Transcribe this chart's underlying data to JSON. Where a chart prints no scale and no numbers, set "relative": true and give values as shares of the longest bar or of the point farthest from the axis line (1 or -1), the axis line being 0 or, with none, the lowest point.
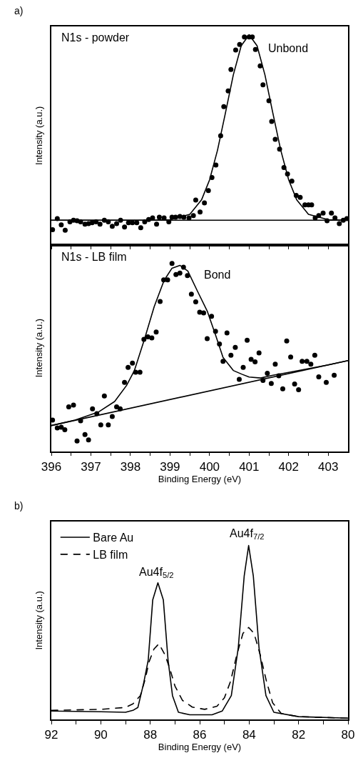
{
  "chart_data": [
    {
      "type": "scatter",
      "title": "a)",
      "ylabel": "Intensity (a.u.)",
      "relative": true,
      "grid": false,
      "tick_labels": false,
      "xlim": [
        396,
        403.5
      ],
      "xticks": [
        396,
        {
          "value": 396.5,
          "label": null
        },
        397,
        {
          "value": 397.5,
          "label": null
        },
        398,
        {
          "value": 398.5,
          "label": null
        },
        399,
        {
          "value": 399.5,
          "label": null
        },
        400,
        {
          "value": 400.5,
          "label": null
        },
        401,
        {
          "value": 401.5,
          "label": null
        },
        402,
        {
          "value": 402.5,
          "label": null
        },
        403
      ],
      "annotations": [
        "N1s - powder",
        "Unbond"
      ],
      "series": [
        {
          "type": "scatter",
          "marker": "circle",
          "color": "#000000",
          "x": [
            396.03,
            396.15,
            396.25,
            396.35,
            396.47,
            396.56,
            396.65,
            396.74,
            396.85,
            396.94,
            397.03,
            397.13,
            397.23,
            397.34,
            397.44,
            397.54,
            397.65,
            397.75,
            397.85,
            397.95,
            398.05,
            398.16,
            398.26,
            398.36,
            398.46,
            398.56,
            398.66,
            398.73,
            398.85,
            398.97,
            399.05,
            399.14,
            399.25,
            399.35,
            399.48,
            399.59,
            399.65,
            399.76,
            399.87,
            399.97,
            400.06,
            400.16,
            400.28,
            400.36,
            400.47,
            400.54,
            400.66,
            400.76,
            400.88,
            401.0,
            401.08,
            401.16,
            401.28,
            401.35,
            401.5,
            401.57,
            401.66,
            401.77,
            401.88,
            401.97,
            402.08,
            402.19,
            402.29,
            402.41,
            402.5,
            402.58,
            402.67,
            402.76,
            402.87,
            402.97,
            403.08,
            403.17,
            403.28,
            403.38,
            403.47
          ],
          "values": [
            0.072,
            0.124,
            0.095,
            0.069,
            0.109,
            0.117,
            0.114,
            0.109,
            0.098,
            0.101,
            0.105,
            0.109,
            0.098,
            0.117,
            0.109,
            0.088,
            0.101,
            0.117,
            0.084,
            0.105,
            0.105,
            0.105,
            0.081,
            0.109,
            0.12,
            0.128,
            0.098,
            0.131,
            0.128,
            0.109,
            0.131,
            0.131,
            0.135,
            0.131,
            0.128,
            0.139,
            0.213,
            0.156,
            0.199,
            0.258,
            0.32,
            0.38,
            0.519,
            0.658,
            0.733,
            0.835,
            0.928,
            0.954,
            0.99,
            0.99,
            0.99,
            0.93,
            0.852,
            0.762,
            0.686,
            0.587,
            0.502,
            0.455,
            0.368,
            0.337,
            0.303,
            0.235,
            0.226,
            0.19,
            0.19,
            0.19,
            0.128,
            0.139,
            0.151,
            0.114,
            0.151,
            0.128,
            0.101,
            0.117,
            0.124
          ]
        },
        {
          "type": "line",
          "color": "#000000",
          "x": [
            396,
            398.5,
            399.0,
            399.5,
            399.8,
            400.0,
            400.2,
            400.4,
            400.6,
            400.8,
            401.0,
            401.2,
            401.4,
            401.6,
            401.8,
            402.0,
            402.2,
            402.5,
            403.0,
            403.5
          ],
          "values": [
            0.117,
            0.117,
            0.119,
            0.145,
            0.215,
            0.309,
            0.45,
            0.627,
            0.809,
            0.948,
            1.0,
            0.948,
            0.809,
            0.627,
            0.45,
            0.309,
            0.215,
            0.145,
            0.119,
            0.117
          ]
        },
        {
          "type": "line",
          "color": "#000000",
          "x": [
            396,
            403.5
          ],
          "values": [
            0.117,
            0.117
          ]
        }
      ]
    },
    {
      "type": "scatter",
      "xlabel": "Binding Energy (eV)",
      "ylabel": "Intensity (a.u.)",
      "relative": true,
      "grid": false,
      "tick_labels": "x",
      "xlim": [
        396,
        403.5
      ],
      "xticks": [
        396,
        {
          "value": 396.5,
          "label": null
        },
        397,
        {
          "value": 397.5,
          "label": null
        },
        398,
        {
          "value": 398.5,
          "label": null
        },
        399,
        {
          "value": 399.5,
          "label": null
        },
        400,
        {
          "value": 400.5,
          "label": null
        },
        401,
        {
          "value": 401.5,
          "label": null
        },
        402,
        {
          "value": 402.5,
          "label": null
        },
        403
      ],
      "annotations": [
        "N1s - LB film",
        "Bond"
      ],
      "series": [
        {
          "type": "scatter",
          "marker": "circle",
          "color": "#000000",
          "x": [
            396.03,
            396.15,
            396.25,
            396.34,
            396.44,
            396.56,
            396.65,
            396.74,
            396.85,
            396.94,
            397.04,
            397.15,
            397.25,
            397.34,
            397.44,
            397.54,
            397.65,
            397.74,
            397.85,
            397.94,
            398.05,
            398.13,
            398.24,
            398.34,
            398.44,
            398.54,
            398.65,
            398.75,
            398.84,
            398.94,
            399.05,
            399.15,
            399.25,
            399.34,
            399.44,
            399.54,
            399.65,
            399.75,
            399.85,
            399.94,
            400.05,
            400.15,
            400.25,
            400.34,
            400.44,
            400.54,
            400.65,
            400.75,
            400.85,
            400.95,
            401.05,
            401.15,
            401.25,
            401.35,
            401.46,
            401.56,
            401.66,
            401.75,
            401.85,
            401.95,
            402.05,
            402.15,
            402.25,
            402.34,
            402.46,
            402.56,
            402.66,
            402.76,
            402.95,
            403.15
          ],
          "values": [
            0.166,
            0.124,
            0.128,
            0.115,
            0.236,
            0.246,
            0.055,
            0.162,
            0.089,
            0.06,
            0.226,
            0.2,
            0.14,
            0.294,
            0.14,
            0.185,
            0.236,
            0.226,
            0.367,
            0.447,
            0.469,
            0.421,
            0.421,
            0.596,
            0.609,
            0.604,
            0.635,
            0.798,
            0.913,
            0.913,
            1.0,
            0.941,
            0.949,
            0.98,
            0.936,
            0.837,
            0.796,
            0.741,
            0.737,
            0.6,
            0.719,
            0.639,
            0.571,
            0.479,
            0.63,
            0.511,
            0.553,
            0.383,
            0.447,
            0.591,
            0.489,
            0.476,
            0.524,
            0.377,
            0.415,
            0.361,
            0.464,
            0.402,
            0.332,
            0.587,
            0.502,
            0.358,
            0.328,
            0.479,
            0.479,
            0.464,
            0.511,
            0.396,
            0.367,
            0.405
          ]
        },
        {
          "type": "line",
          "color": "#000000",
          "x": [
            396.0,
            396.6,
            397.2,
            397.6,
            397.9,
            398.1,
            398.35,
            398.6,
            398.85,
            399.05,
            399.25,
            399.45,
            399.7,
            399.94,
            400.15,
            400.34,
            400.6,
            400.82,
            401.0,
            401.29,
            401.6,
            402.0,
            402.5,
            403.0,
            403.5
          ],
          "values": [
            0.137,
            0.166,
            0.21,
            0.265,
            0.35,
            0.43,
            0.594,
            0.77,
            0.91,
            0.975,
            0.99,
            0.96,
            0.85,
            0.747,
            0.62,
            0.5,
            0.43,
            0.41,
            0.395,
            0.39,
            0.405,
            0.42,
            0.44,
            0.46,
            0.483
          ]
        },
        {
          "type": "line",
          "color": "#000000",
          "x": [
            396,
            403.5
          ],
          "values": [
            0.137,
            0.483
          ]
        }
      ]
    },
    {
      "type": "line",
      "title": "b)",
      "xlabel": "Binding Energy (eV)",
      "ylabel": "Intensity (a.u.)",
      "relative": true,
      "grid": false,
      "tick_labels": "x",
      "legend": "top left",
      "xlim": [
        92,
        80
      ],
      "xticks": [
        92,
        {
          "value": 91,
          "label": null
        },
        90,
        {
          "value": 89,
          "label": null
        },
        88,
        {
          "value": 87,
          "label": null
        },
        86,
        {
          "value": 85,
          "label": null
        },
        84,
        {
          "value": 83,
          "label": null
        },
        82,
        {
          "value": 81,
          "label": null
        },
        80
      ],
      "annotations": [
        "Au4f$_{5/2}$",
        "Au4f$_{7/2}$"
      ],
      "series": [
        {
          "name": "Bare Au",
          "color": "#000000",
          "line_style": "solid",
          "x": [
            92,
            90,
            89,
            88.7,
            88.5,
            88.27,
            88.08,
            87.9,
            87.69,
            87.47,
            87.28,
            87.1,
            86.86,
            86.4,
            85.5,
            85.09,
            84.72,
            84.44,
            84.2,
            84.02,
            83.83,
            83.6,
            83.32,
            83.0,
            82,
            80
          ],
          "values": [
            0.048,
            0.044,
            0.041,
            0.052,
            0.069,
            0.206,
            0.343,
            0.687,
            0.786,
            0.687,
            0.343,
            0.137,
            0.041,
            0.027,
            0.027,
            0.048,
            0.137,
            0.412,
            0.824,
            1.0,
            0.824,
            0.412,
            0.137,
            0.041,
            0.016,
            0.007
          ]
        },
        {
          "name": "LB film",
          "color": "#000000",
          "line_style": "dashed",
          "x": [
            92,
            90,
            89,
            88.7,
            88.4,
            88.2,
            88.05,
            87.85,
            87.65,
            87.4,
            87.2,
            87.0,
            86.7,
            86.3,
            85.8,
            85.3,
            85.0,
            84.75,
            84.5,
            84.25,
            84.02,
            83.8,
            83.55,
            83.3,
            83.05,
            82.7,
            82,
            80
          ],
          "values": [
            0.052,
            0.058,
            0.069,
            0.089,
            0.137,
            0.234,
            0.33,
            0.405,
            0.435,
            0.371,
            0.288,
            0.192,
            0.11,
            0.071,
            0.058,
            0.076,
            0.124,
            0.22,
            0.371,
            0.495,
            0.529,
            0.495,
            0.371,
            0.22,
            0.096,
            0.034,
            0.016,
            0.007
          ]
        }
      ]
    }
  ]
}
